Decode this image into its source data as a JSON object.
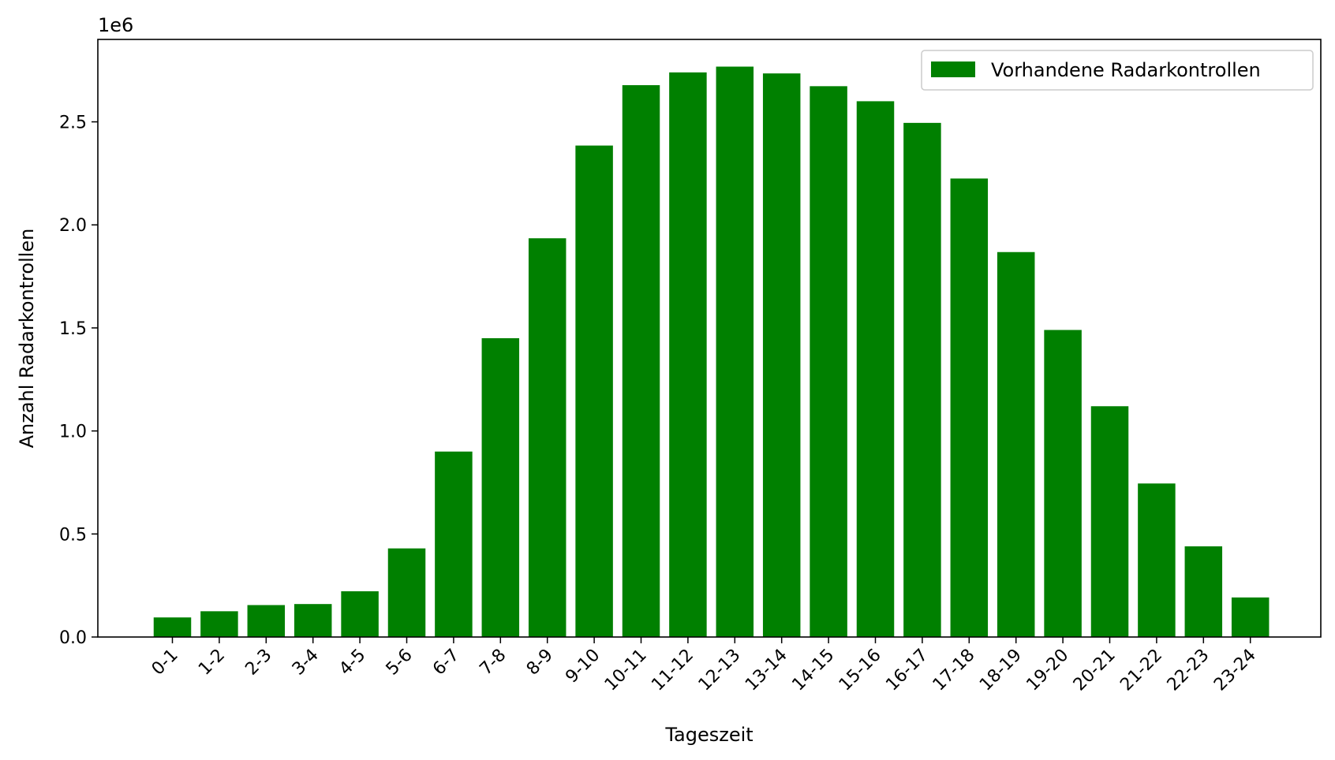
{
  "chart_data": {
    "type": "bar",
    "title": "",
    "xlabel": "Tageszeit",
    "ylabel": "Anzahl Radarkontrollen",
    "offset_label": "1e6",
    "categories": [
      "0-1",
      "1-2",
      "2-3",
      "3-4",
      "4-5",
      "5-6",
      "6-7",
      "7-8",
      "8-9",
      "9-10",
      "10-11",
      "11-12",
      "12-13",
      "13-14",
      "14-15",
      "15-16",
      "16-17",
      "17-18",
      "18-19",
      "19-20",
      "20-21",
      "21-22",
      "22-23",
      "23-24"
    ],
    "series": [
      {
        "name": "Vorhandene Radarkontrollen",
        "color": "#008000",
        "values": [
          95000,
          125000,
          155000,
          160000,
          222000,
          430000,
          900000,
          1450000,
          1935000,
          2385000,
          2678000,
          2740000,
          2768000,
          2735000,
          2673000,
          2600000,
          2495000,
          2225000,
          1868000,
          1490000,
          1120000,
          745000,
          440000,
          192000
        ]
      }
    ],
    "ylim": [
      0,
      2900000
    ],
    "yticks": [
      0,
      500000,
      1000000,
      1500000,
      2000000,
      2500000
    ],
    "ytick_labels": [
      "0.0",
      "0.5",
      "1.0",
      "1.5",
      "2.0",
      "2.5"
    ],
    "grid": false,
    "legend_position": "upper right"
  }
}
